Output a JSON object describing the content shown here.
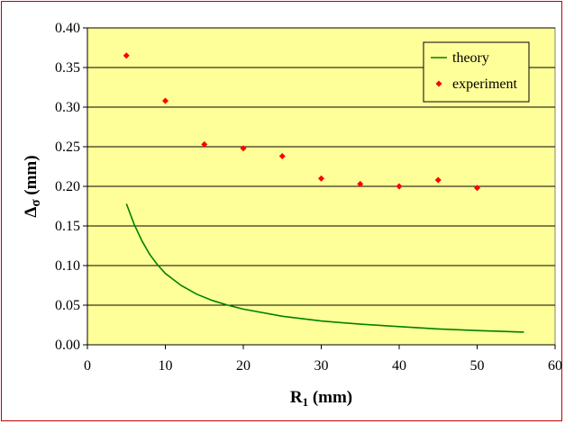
{
  "chart_data": {
    "type": "scatter",
    "xlabel": {
      "main": "R",
      "sub": "1",
      "unit": " (mm)"
    },
    "ylabel": {
      "main": "Δ",
      "sub": "σ",
      "unit": " (mm)"
    },
    "xlim": [
      0,
      60
    ],
    "ylim": [
      0,
      0.4
    ],
    "x_ticks": [
      "0",
      "10",
      "20",
      "30",
      "40",
      "50",
      "60"
    ],
    "y_ticks": [
      "0.00",
      "0.05",
      "0.10",
      "0.15",
      "0.20",
      "0.25",
      "0.30",
      "0.35",
      "0.40"
    ],
    "grid": "horizontal",
    "legend_position": "top-right",
    "series": [
      {
        "name": "theory",
        "kind": "line",
        "color": "#008000",
        "x": [
          5,
          6,
          7,
          8,
          9,
          10,
          12,
          14,
          16,
          18,
          20,
          25,
          30,
          35,
          40,
          45,
          50,
          56
        ],
        "y": [
          0.178,
          0.152,
          0.131,
          0.114,
          0.101,
          0.09,
          0.075,
          0.064,
          0.056,
          0.05,
          0.045,
          0.036,
          0.03,
          0.026,
          0.023,
          0.02,
          0.018,
          0.016
        ]
      },
      {
        "name": "experiment",
        "kind": "scatter",
        "color": "#ff0000",
        "x": [
          5,
          10,
          15,
          20,
          25,
          30,
          35,
          40,
          45,
          50
        ],
        "y": [
          0.365,
          0.308,
          0.253,
          0.248,
          0.238,
          0.21,
          0.203,
          0.2,
          0.208,
          0.198
        ]
      }
    ]
  },
  "colors": {
    "plot_background": "#ffff99",
    "frame_border": "#c00000",
    "grid": "#000000"
  }
}
